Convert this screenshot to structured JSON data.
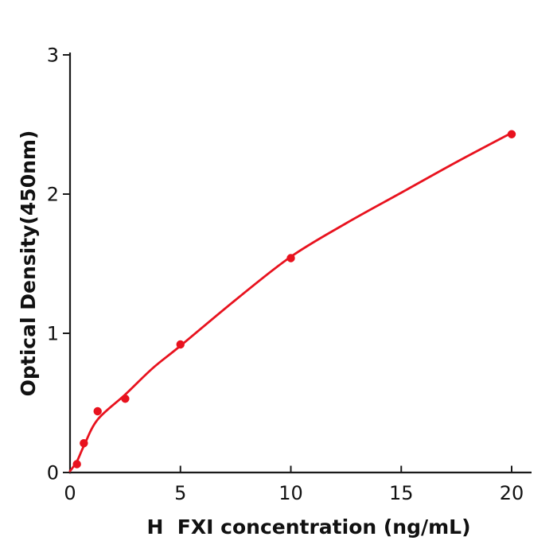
{
  "figure": {
    "background": "#ffffff"
  },
  "chart_data": {
    "type": "scatter",
    "title": "",
    "xlabel": "H  FXI concentration (ng/mL)",
    "ylabel": "Optical Density(450nm)",
    "x_ticks": [
      0,
      5,
      10,
      15,
      20
    ],
    "y_ticks": [
      0,
      1,
      2,
      3
    ],
    "xlim": [
      0,
      20.9
    ],
    "ylim": [
      0,
      3
    ],
    "grid": false,
    "points": [
      {
        "x": 0.3125,
        "y": 0.06
      },
      {
        "x": 0.625,
        "y": 0.21
      },
      {
        "x": 1.25,
        "y": 0.44
      },
      {
        "x": 2.5,
        "y": 0.53
      },
      {
        "x": 5,
        "y": 0.92
      },
      {
        "x": 10,
        "y": 1.54
      },
      {
        "x": 20,
        "y": 2.43
      }
    ],
    "fit_curve": [
      [
        0,
        0.01
      ],
      [
        0.3125,
        0.08
      ],
      [
        0.625,
        0.19
      ],
      [
        1.25,
        0.38
      ],
      [
        2.5,
        0.56
      ],
      [
        3.75,
        0.75
      ],
      [
        5,
        0.91
      ],
      [
        7.5,
        1.24
      ],
      [
        10,
        1.55
      ],
      [
        12.5,
        1.79
      ],
      [
        15,
        2.01
      ],
      [
        17.5,
        2.23
      ],
      [
        20,
        2.44
      ]
    ],
    "colors": {
      "series": "#e8121e",
      "axis": "#1a1a1a",
      "text": "#111111"
    },
    "marker_radius": 5.2,
    "curve_width": 2.8
  }
}
